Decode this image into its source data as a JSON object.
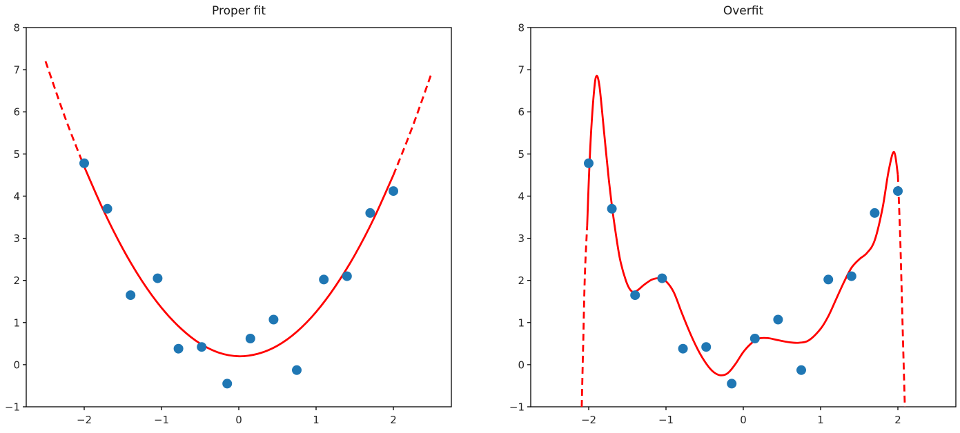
{
  "figure": {
    "background": "#ffffff",
    "text_color": "#262626"
  },
  "chart_data": [
    {
      "type": "scatter",
      "title": "Proper fit",
      "xlim": [
        -2.75,
        2.75
      ],
      "ylim": [
        -1,
        8
      ],
      "xticks": [
        -2,
        -1,
        0,
        1,
        2
      ],
      "yticks": [
        -1,
        0,
        1,
        2,
        3,
        4,
        5,
        6,
        7,
        8
      ],
      "grid": false,
      "legend": "none",
      "scatter": {
        "name": "data-points",
        "color": "#1f77b4",
        "x": [
          -2.0,
          -1.7,
          -1.4,
          -1.05,
          -0.78,
          -0.48,
          -0.15,
          0.15,
          0.45,
          0.75,
          1.1,
          1.4,
          1.7,
          2.0
        ],
        "y": [
          4.78,
          3.7,
          1.65,
          2.05,
          0.38,
          0.42,
          -0.45,
          0.62,
          1.07,
          -0.13,
          2.02,
          2.1,
          3.6,
          4.12
        ]
      },
      "curves": [
        {
          "name": "fit-extrapolation-left",
          "style": "dashed",
          "color": "#ff0000",
          "x": [
            -2.5,
            -2.25,
            -2.0
          ],
          "y": [
            7.2,
            5.88,
            4.7
          ]
        },
        {
          "name": "quadratic-fit",
          "style": "solid",
          "color": "#ff0000",
          "x": [
            -2.0,
            -1.75,
            -1.5,
            -1.25,
            -1.0,
            -0.75,
            -0.5,
            -0.25,
            0.0,
            0.25,
            0.5,
            0.75,
            1.0,
            1.25,
            1.5,
            1.75,
            2.0
          ],
          "y": [
            4.7,
            3.66,
            2.75,
            1.98,
            1.35,
            0.86,
            0.5,
            0.28,
            0.2,
            0.26,
            0.45,
            0.78,
            1.25,
            1.86,
            2.6,
            3.48,
            4.5
          ]
        },
        {
          "name": "fit-extrapolation-right",
          "style": "dashed",
          "color": "#ff0000",
          "x": [
            2.0,
            2.25,
            2.5
          ],
          "y": [
            4.5,
            5.66,
            6.95
          ]
        }
      ]
    },
    {
      "type": "scatter",
      "title": "Overfit",
      "xlim": [
        -2.75,
        2.75
      ],
      "ylim": [
        -1,
        8
      ],
      "xticks": [
        -2,
        -1,
        0,
        1,
        2
      ],
      "yticks": [
        -1,
        0,
        1,
        2,
        3,
        4,
        5,
        6,
        7,
        8
      ],
      "grid": false,
      "legend": "none",
      "scatter": {
        "name": "data-points",
        "color": "#1f77b4",
        "x": [
          -2.0,
          -1.7,
          -1.4,
          -1.05,
          -0.78,
          -0.48,
          -0.15,
          0.15,
          0.45,
          0.75,
          1.1,
          1.4,
          1.7,
          2.0
        ],
        "y": [
          4.78,
          3.7,
          1.65,
          2.05,
          0.38,
          0.42,
          -0.45,
          0.62,
          1.07,
          -0.13,
          2.02,
          2.1,
          3.6,
          4.12
        ]
      },
      "curves": [
        {
          "name": "fit-extrapolation-left",
          "style": "dashed",
          "color": "#ff0000",
          "x": [
            -2.09,
            -2.07,
            -2.05,
            -2.02
          ],
          "y": [
            -1.0,
            0.6,
            2.1,
            3.3
          ]
        },
        {
          "name": "high-degree-polynomial-fit",
          "style": "solid",
          "color": "#ff0000",
          "x": [
            -2.02,
            -2.0,
            -1.97,
            -1.93,
            -1.9,
            -1.86,
            -1.8,
            -1.74,
            -1.68,
            -1.6,
            -1.52,
            -1.45,
            -1.38,
            -1.28,
            -1.18,
            -1.08,
            -1.0,
            -0.9,
            -0.8,
            -0.7,
            -0.6,
            -0.5,
            -0.4,
            -0.3,
            -0.2,
            -0.1,
            0.0,
            0.1,
            0.2,
            0.32,
            0.45,
            0.6,
            0.72,
            0.85,
            1.0,
            1.1,
            1.2,
            1.3,
            1.4,
            1.5,
            1.6,
            1.7,
            1.8,
            1.88,
            1.95,
            2.0
          ],
          "y": [
            3.3,
            4.3,
            5.5,
            6.5,
            6.85,
            6.6,
            5.5,
            4.4,
            3.5,
            2.55,
            2.0,
            1.75,
            1.75,
            1.9,
            2.02,
            2.05,
            1.98,
            1.72,
            1.25,
            0.8,
            0.4,
            0.08,
            -0.15,
            -0.25,
            -0.2,
            0.02,
            0.3,
            0.5,
            0.62,
            0.63,
            0.58,
            0.53,
            0.52,
            0.58,
            0.85,
            1.15,
            1.55,
            1.95,
            2.3,
            2.5,
            2.65,
            2.95,
            3.7,
            4.6,
            5.05,
            4.5
          ]
        },
        {
          "name": "fit-extrapolation-right",
          "style": "dashed",
          "color": "#ff0000",
          "x": [
            2.0,
            2.03,
            2.06,
            2.09
          ],
          "y": [
            4.5,
            3.0,
            1.0,
            -1.0
          ]
        }
      ]
    }
  ]
}
